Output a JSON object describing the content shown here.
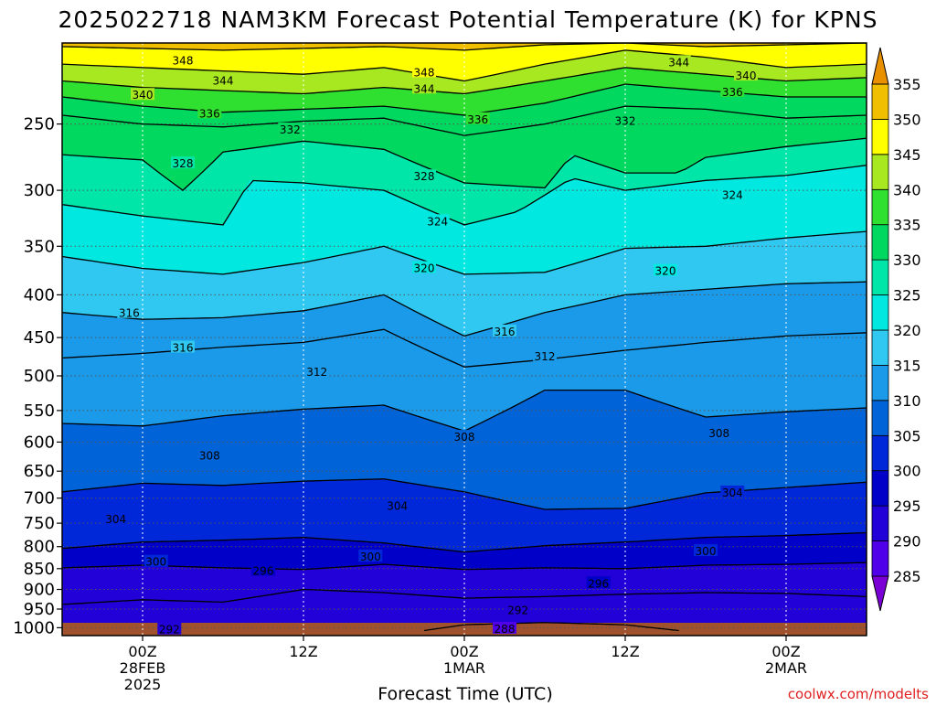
{
  "title": "2025022718 NAM3KM Forecast Potential Temperature (K) for KPNS",
  "credit": "coolwx.com/modelts",
  "chart_data": {
    "type": "heatmap",
    "title": "2025022718 NAM3KM Forecast Potential Temperature (K) for KPNS",
    "xlabel": "Forecast Time (UTC)",
    "ylabel": "",
    "y_axis": {
      "scale": "log",
      "reversed": true,
      "ticks": [
        250,
        300,
        350,
        400,
        450,
        500,
        550,
        600,
        650,
        700,
        750,
        800,
        850,
        900,
        950,
        1000
      ],
      "range_hPa": [
        200,
        1022
      ]
    },
    "x_axis": {
      "range_hours": [
        -6,
        54
      ],
      "ticks": [
        {
          "hour": 0,
          "lines": [
            "00Z",
            "28FEB",
            "2025"
          ]
        },
        {
          "hour": 12,
          "lines": [
            "12Z"
          ]
        },
        {
          "hour": 24,
          "lines": [
            "00Z",
            "1MAR"
          ]
        },
        {
          "hour": 36,
          "lines": [
            "12Z"
          ]
        },
        {
          "hour": 48,
          "lines": [
            "00Z",
            "2MAR"
          ]
        }
      ]
    },
    "grid": true,
    "colorbar": {
      "levels": [
        285,
        290,
        295,
        300,
        305,
        310,
        315,
        320,
        325,
        330,
        335,
        340,
        345,
        350,
        355
      ],
      "colors": [
        "#7a00d6",
        "#4f00e8",
        "#2200d8",
        "#0000c8",
        "#0028d8",
        "#0064d8",
        "#1a9ae8",
        "#30c8f0",
        "#00e8e0",
        "#00e6a8",
        "#00d860",
        "#30e030",
        "#a8e820",
        "#ffff00",
        "#f0c000",
        "#e89000"
      ]
    },
    "contour_levels": [
      292,
      296,
      300,
      304,
      308,
      312,
      316,
      320,
      324,
      328,
      332,
      336,
      340,
      344,
      348
    ],
    "series": [
      {
        "level": 348,
        "points": [
          [
            -6,
            202
          ],
          [
            0,
            203
          ],
          [
            6,
            204
          ],
          [
            12,
            203
          ],
          [
            18,
            202
          ],
          [
            24,
            204
          ],
          [
            30,
            201
          ],
          [
            36,
            200
          ],
          [
            42,
            202
          ],
          [
            48,
            201
          ],
          [
            54,
            200
          ]
        ],
        "labels": [
          [
            3,
            210
          ],
          [
            21,
            217
          ]
        ]
      },
      {
        "level": 344,
        "points": [
          [
            -6,
            212
          ],
          [
            0,
            214
          ],
          [
            6,
            216
          ],
          [
            12,
            218
          ],
          [
            18,
            214
          ],
          [
            24,
            222
          ],
          [
            30,
            212
          ],
          [
            36,
            204
          ],
          [
            42,
            208
          ],
          [
            48,
            214
          ],
          [
            54,
            212
          ]
        ],
        "labels": [
          [
            6,
            222
          ],
          [
            21,
            227
          ],
          [
            40,
            211
          ]
        ]
      },
      {
        "level": 340,
        "points": [
          [
            -6,
            222
          ],
          [
            0,
            226
          ],
          [
            6,
            228
          ],
          [
            12,
            230
          ],
          [
            18,
            226
          ],
          [
            24,
            230
          ],
          [
            30,
            222
          ],
          [
            36,
            214
          ],
          [
            42,
            218
          ],
          [
            48,
            222
          ],
          [
            54,
            220
          ]
        ],
        "labels": [
          [
            0,
            231
          ],
          [
            45,
            219
          ]
        ]
      },
      {
        "level": 336,
        "points": [
          [
            -6,
            232
          ],
          [
            0,
            238
          ],
          [
            6,
            242
          ],
          [
            12,
            240
          ],
          [
            18,
            238
          ],
          [
            24,
            244
          ],
          [
            30,
            236
          ],
          [
            36,
            224
          ],
          [
            42,
            228
          ],
          [
            48,
            232
          ],
          [
            54,
            232
          ]
        ],
        "labels": [
          [
            5,
            243
          ],
          [
            25,
            247
          ],
          [
            44,
            229
          ]
        ]
      },
      {
        "level": 332,
        "points": [
          [
            -6,
            244
          ],
          [
            0,
            250
          ],
          [
            6,
            252
          ],
          [
            12,
            248
          ],
          [
            18,
            246
          ],
          [
            24,
            258
          ],
          [
            30,
            250
          ],
          [
            36,
            238
          ],
          [
            42,
            240
          ],
          [
            48,
            246
          ],
          [
            54,
            244
          ]
        ],
        "labels": [
          [
            11,
            254
          ],
          [
            36,
            248
          ]
        ]
      },
      {
        "level": 328,
        "points": [
          [
            -6,
            272
          ],
          [
            0,
            276
          ],
          [
            3,
            300
          ],
          [
            6,
            270
          ],
          [
            12,
            262
          ],
          [
            18,
            268
          ],
          [
            24,
            294
          ],
          [
            30,
            298
          ],
          [
            32,
            272
          ],
          [
            36,
            286
          ],
          [
            40,
            286
          ],
          [
            42,
            274
          ],
          [
            48,
            266
          ],
          [
            54,
            260
          ]
        ],
        "labels": [
          [
            3,
            279
          ],
          [
            21,
            289
          ]
        ]
      },
      {
        "level": 324,
        "points": [
          [
            -6,
            312
          ],
          [
            0,
            322
          ],
          [
            6,
            330
          ],
          [
            8,
            292
          ],
          [
            12,
            294
          ],
          [
            18,
            300
          ],
          [
            24,
            330
          ],
          [
            28,
            318
          ],
          [
            32,
            290
          ],
          [
            36,
            300
          ],
          [
            42,
            292
          ],
          [
            48,
            288
          ],
          [
            54,
            280
          ]
        ],
        "labels": [
          [
            22,
            327
          ],
          [
            44,
            304
          ]
        ]
      },
      {
        "level": 320,
        "points": [
          [
            -6,
            360
          ],
          [
            0,
            372
          ],
          [
            6,
            378
          ],
          [
            12,
            366
          ],
          [
            18,
            350
          ],
          [
            24,
            378
          ],
          [
            30,
            376
          ],
          [
            36,
            352
          ],
          [
            42,
            350
          ],
          [
            48,
            342
          ],
          [
            54,
            336
          ]
        ],
        "labels": [
          [
            21,
            372
          ],
          [
            39,
            375
          ]
        ]
      },
      {
        "level": 316,
        "points": [
          [
            -6,
            420
          ],
          [
            0,
            428
          ],
          [
            6,
            426
          ],
          [
            12,
            418
          ],
          [
            18,
            400
          ],
          [
            24,
            448
          ],
          [
            30,
            420
          ],
          [
            36,
            400
          ],
          [
            42,
            394
          ],
          [
            48,
            388
          ],
          [
            54,
            386
          ]
        ],
        "labels": [
          [
            -1,
            421
          ],
          [
            3,
            463
          ],
          [
            27,
            443
          ]
        ]
      },
      {
        "level": 312,
        "points": [
          [
            -6,
            476
          ],
          [
            0,
            470
          ],
          [
            6,
            462
          ],
          [
            12,
            456
          ],
          [
            18,
            440
          ],
          [
            24,
            488
          ],
          [
            30,
            478
          ],
          [
            36,
            466
          ],
          [
            42,
            456
          ],
          [
            48,
            448
          ],
          [
            54,
            444
          ]
        ],
        "labels": [
          [
            13,
            495
          ],
          [
            30,
            474
          ]
        ]
      },
      {
        "level": 308,
        "points": [
          [
            -6,
            570
          ],
          [
            0,
            574
          ],
          [
            6,
            558
          ],
          [
            12,
            548
          ],
          [
            18,
            542
          ],
          [
            24,
            582
          ],
          [
            30,
            520
          ],
          [
            36,
            520
          ],
          [
            42,
            560
          ],
          [
            48,
            552
          ],
          [
            54,
            546
          ]
        ],
        "labels": [
          [
            5,
            623
          ],
          [
            24,
            592
          ],
          [
            43,
            586
          ]
        ]
      },
      {
        "level": 304,
        "points": [
          [
            -6,
            688
          ],
          [
            0,
            672
          ],
          [
            6,
            676
          ],
          [
            12,
            668
          ],
          [
            18,
            664
          ],
          [
            24,
            688
          ],
          [
            30,
            722
          ],
          [
            36,
            720
          ],
          [
            42,
            690
          ],
          [
            48,
            680
          ],
          [
            54,
            670
          ]
        ],
        "labels": [
          [
            -2,
            742
          ],
          [
            19,
            716
          ],
          [
            44,
            690
          ]
        ]
      },
      {
        "level": 300,
        "points": [
          [
            -6,
            804
          ],
          [
            0,
            790
          ],
          [
            6,
            786
          ],
          [
            12,
            780
          ],
          [
            18,
            792
          ],
          [
            24,
            812
          ],
          [
            30,
            798
          ],
          [
            36,
            790
          ],
          [
            42,
            780
          ],
          [
            48,
            776
          ],
          [
            54,
            770
          ]
        ],
        "labels": [
          [
            1,
            835
          ],
          [
            17,
            823
          ],
          [
            42,
            811
          ]
        ]
      },
      {
        "level": 296,
        "points": [
          [
            -6,
            848
          ],
          [
            0,
            842
          ],
          [
            6,
            848
          ],
          [
            12,
            852
          ],
          [
            18,
            840
          ],
          [
            24,
            852
          ],
          [
            30,
            848
          ],
          [
            36,
            850
          ],
          [
            42,
            842
          ],
          [
            48,
            840
          ],
          [
            54,
            836
          ]
        ],
        "labels": [
          [
            9,
            856
          ],
          [
            34,
            886
          ]
        ]
      },
      {
        "level": 292,
        "points": [
          [
            -6,
            938
          ],
          [
            0,
            926
          ],
          [
            6,
            932
          ],
          [
            12,
            900
          ],
          [
            18,
            908
          ],
          [
            24,
            922
          ],
          [
            30,
            918
          ],
          [
            36,
            912
          ],
          [
            42,
            908
          ],
          [
            48,
            910
          ],
          [
            54,
            918
          ]
        ],
        "labels": [
          [
            2,
            1006
          ],
          [
            28,
            954
          ]
        ]
      },
      {
        "level": 288,
        "points": [
          [
            21,
            1008
          ],
          [
            24,
            992
          ],
          [
            30,
            986
          ],
          [
            36,
            992
          ],
          [
            40,
            1008
          ]
        ],
        "labels": [
          [
            27,
            1004
          ]
        ]
      }
    ]
  }
}
